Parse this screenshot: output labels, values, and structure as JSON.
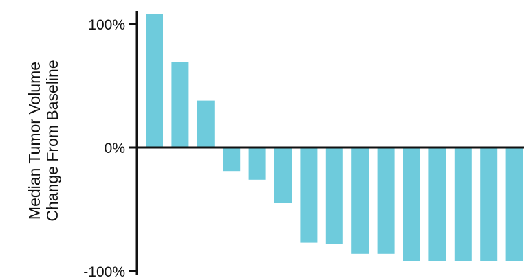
{
  "chart_data": {
    "type": "bar",
    "title": "",
    "xlabel": "",
    "ylabel_lines": [
      "Median Tumor Volume",
      "Change From Baseline"
    ],
    "ylim": [
      -100,
      100
    ],
    "yticks": [
      {
        "value": 100,
        "label": "100%"
      },
      {
        "value": 0,
        "label": "0%"
      },
      {
        "value": -100,
        "label": "-100%"
      }
    ],
    "grid": false,
    "legend": "none",
    "bar_color": "#6ecbdc",
    "axis_color": "#111111",
    "values": [
      108,
      69,
      38,
      -19,
      -26,
      -45,
      -77,
      -78,
      -86,
      -86,
      -92,
      -92,
      -92,
      -92,
      -92
    ]
  }
}
